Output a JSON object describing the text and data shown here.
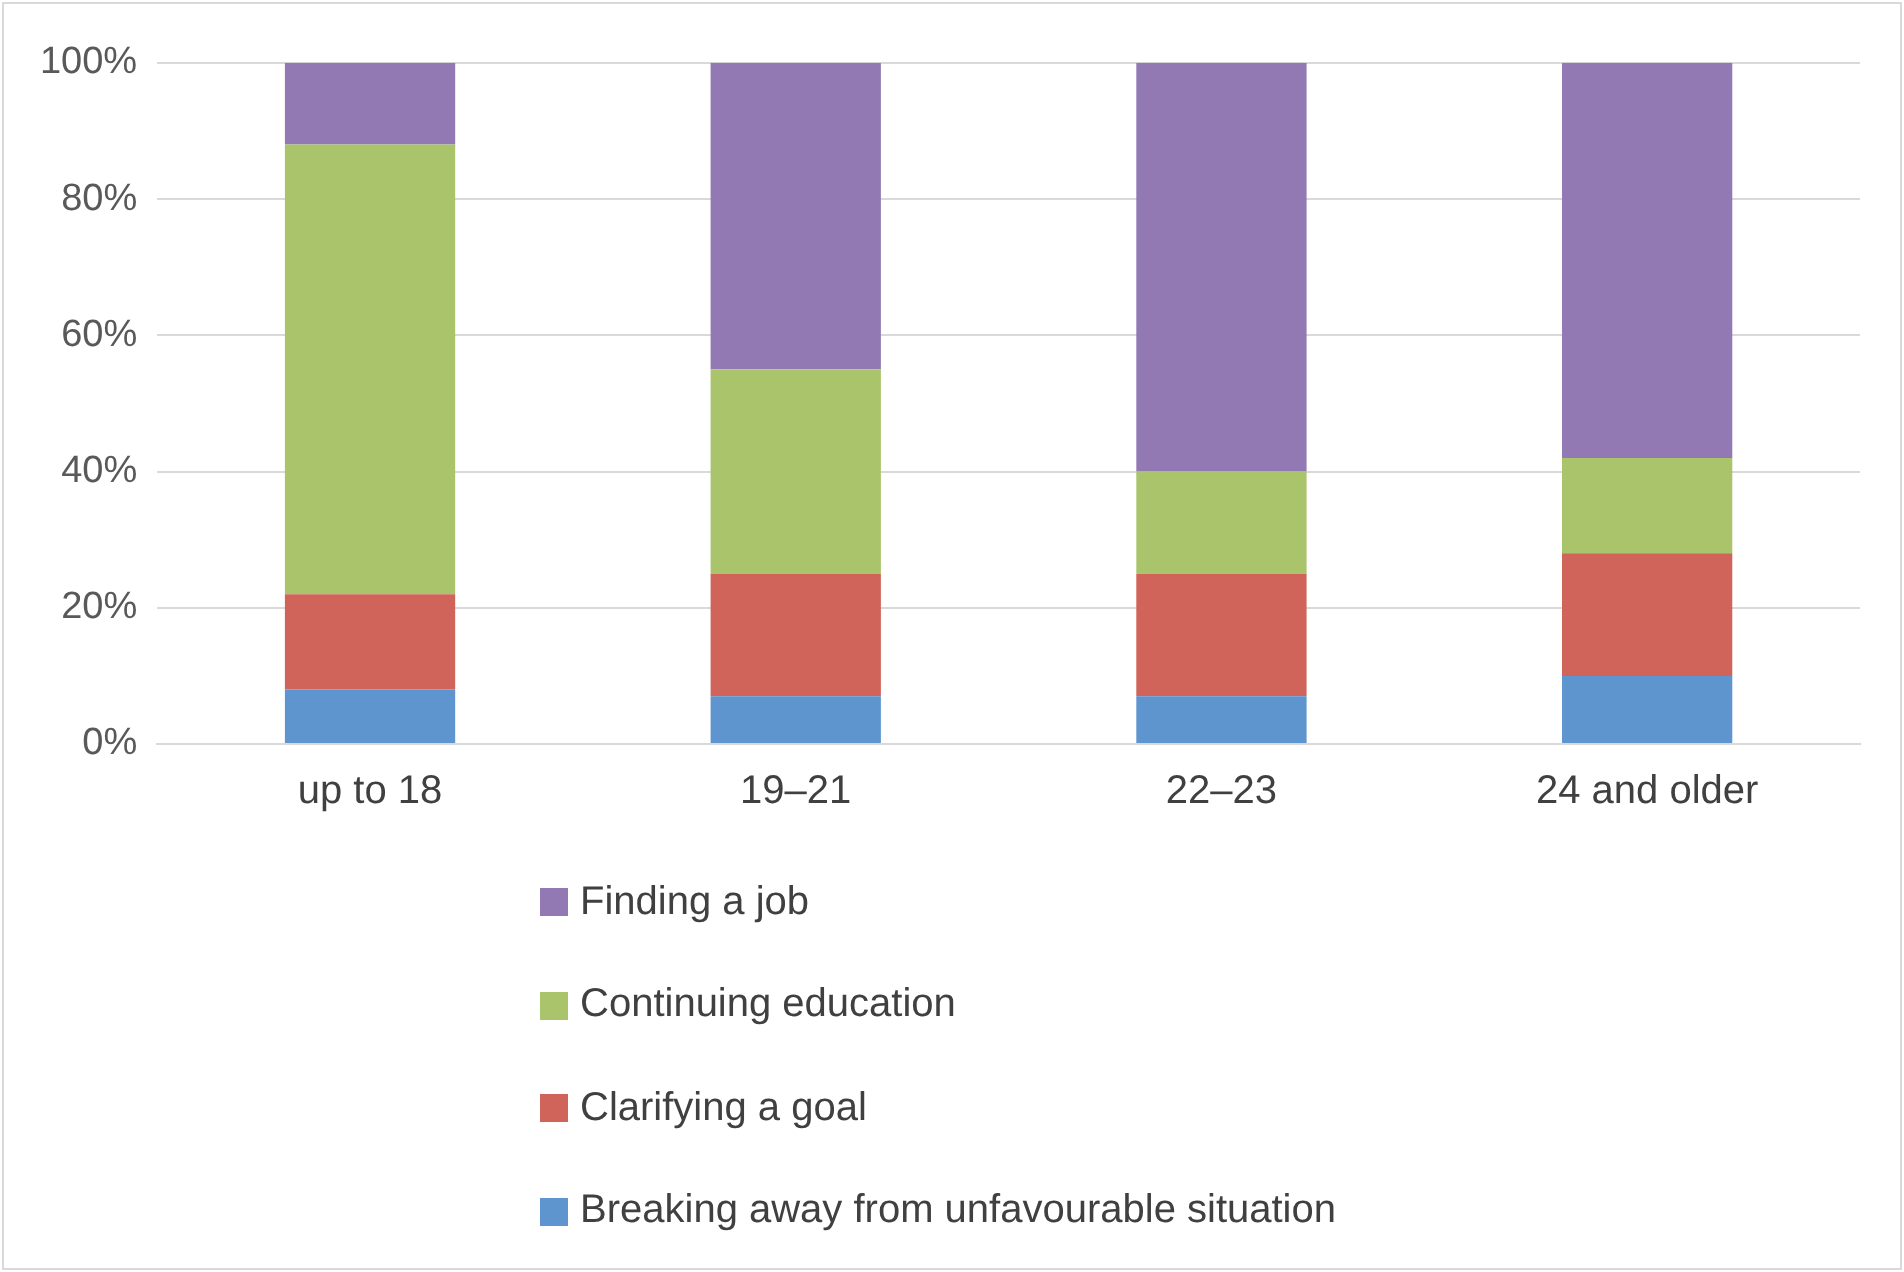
{
  "chart_data": {
    "type": "bar",
    "stacked": true,
    "categories": [
      "up to 18",
      "19–21",
      "22–23",
      "24 and older"
    ],
    "series": [
      {
        "name": "Breaking away from unfavourable situation",
        "color": "#5f95cf",
        "values": [
          8,
          7,
          7,
          10
        ]
      },
      {
        "name": "Clarifying a goal",
        "color": "#d0635a",
        "values": [
          14,
          18,
          18,
          18
        ]
      },
      {
        "name": "Continuing education",
        "color": "#a9c46b",
        "values": [
          66,
          30,
          15,
          14
        ]
      },
      {
        "name": "Finding a job",
        "color": "#9279b4",
        "values": [
          12,
          45,
          60,
          58
        ]
      }
    ],
    "ylim": [
      0,
      100
    ],
    "yticks": [
      {
        "value": 0,
        "label": "0%"
      },
      {
        "value": 20,
        "label": "20%"
      },
      {
        "value": 40,
        "label": "40%"
      },
      {
        "value": 60,
        "label": "60%"
      },
      {
        "value": 80,
        "label": "80%"
      },
      {
        "value": 100,
        "label": "100%"
      }
    ],
    "grid": "y",
    "legend": "bottom"
  }
}
